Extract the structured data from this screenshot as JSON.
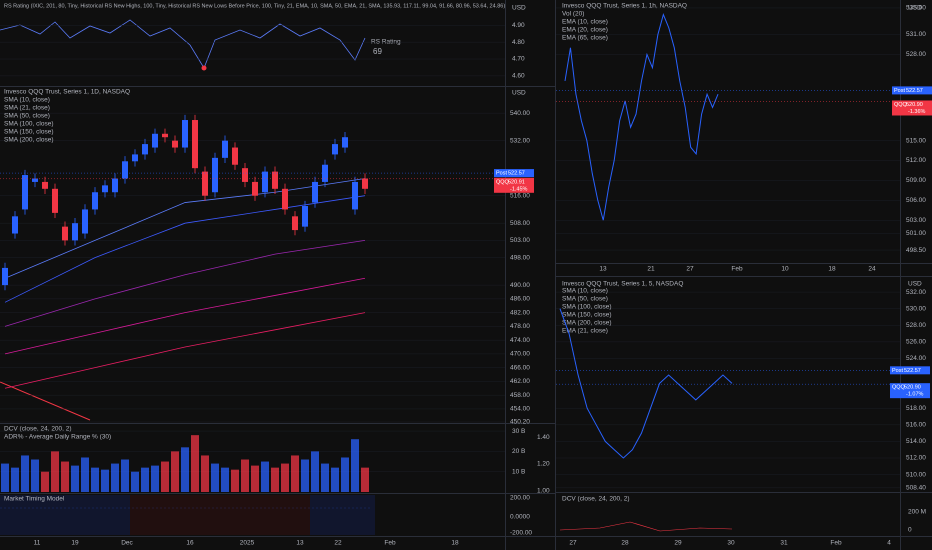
{
  "left": {
    "rs_pane": {
      "title": "RS Rating (IXIC, 201, 80, Tiny, Historical RS New Highs, 100, Tiny, Historical RS New Lows  Before Price, 100, Tiny, 21, EMA, 10, SMA, 50, EMA, 21, SMA, 135.93, 117.11, 99.04, 91.66, 80.96, 53.64, 24.86)",
      "currency": "USD",
      "label": "RS Rating",
      "rating": "69",
      "ylim": [
        4.54,
        5.05
      ],
      "yticks": [
        {
          "value": 4.9,
          "label": "4.90"
        },
        {
          "value": 4.8,
          "label": "4.80"
        },
        {
          "value": 4.7,
          "label": "4.70"
        },
        {
          "value": 4.6,
          "label": "4.60"
        }
      ]
    },
    "price_pane": {
      "title": "Invesco QQQ Trust, Series 1, 1D, NASDAQ",
      "currency": "USD",
      "indicators": [
        "SMA (10, close)",
        "SMA (21, close)",
        "SMA (50, close)",
        "SMA (100, close)",
        "SMA (150, close)",
        "SMA (200, close)"
      ],
      "ylim": [
        450.2,
        547.6
      ],
      "yticks": [
        {
          "value": 540,
          "label": "540.00"
        },
        {
          "value": 532,
          "label": "532.00"
        },
        {
          "value": 516,
          "label": "516.00"
        },
        {
          "value": 508,
          "label": "508.00"
        },
        {
          "value": 503,
          "label": "503.00"
        },
        {
          "value": 498,
          "label": "498.00"
        },
        {
          "value": 490,
          "label": "490.00"
        },
        {
          "value": 486,
          "label": "486.00"
        },
        {
          "value": 482,
          "label": "482.00"
        },
        {
          "value": 478,
          "label": "478.00"
        },
        {
          "value": 474,
          "label": "474.00"
        },
        {
          "value": 470,
          "label": "470.00"
        },
        {
          "value": 466,
          "label": "466.00"
        },
        {
          "value": 462,
          "label": "462.00"
        },
        {
          "value": 458,
          "label": "458.00"
        },
        {
          "value": 454,
          "label": "454.00"
        },
        {
          "value": 450.2,
          "label": "450.20"
        }
      ],
      "tags": [
        {
          "name": "Post",
          "value": 522.57,
          "label": "522.57",
          "color": "#2962ff"
        },
        {
          "name": "QQQ",
          "value": 520.91,
          "label": "520.91",
          "change": "-1.45%",
          "color": "#f23645"
        }
      ],
      "up_color": "#2962ff",
      "down_color": "#f23645",
      "open": [
        490,
        505,
        512,
        520,
        520,
        518,
        507,
        503,
        505,
        512,
        517,
        517,
        521,
        526,
        528,
        530,
        534,
        532,
        530,
        538,
        523,
        517,
        527,
        530,
        524,
        520,
        517,
        523,
        518,
        510,
        507,
        514,
        520,
        528,
        530,
        512,
        521
      ],
      "close": [
        495,
        510,
        522,
        521,
        518,
        511,
        503,
        508,
        512,
        517,
        519,
        521,
        526,
        528,
        531,
        534,
        533,
        530,
        538,
        524,
        516,
        527,
        532,
        525,
        520,
        516,
        523,
        518,
        512,
        506,
        513,
        520,
        525,
        531,
        533,
        520,
        518
      ],
      "high": [
        496.5,
        511.5,
        523.5,
        522.5,
        521.5,
        519.5,
        508.5,
        509.5,
        513.5,
        518.5,
        520.5,
        522.5,
        527.5,
        529.5,
        532.5,
        535.5,
        535.5,
        533.5,
        539.5,
        539.5,
        524.5,
        528.5,
        533.5,
        531.5,
        525.5,
        521.5,
        524.5,
        524.5,
        519.5,
        511.5,
        514.5,
        521.5,
        526.5,
        532.5,
        534.5,
        521.5,
        522.5
      ],
      "low": [
        488.5,
        503.5,
        510.5,
        518.5,
        516.5,
        509.5,
        501.5,
        501.5,
        503.5,
        510.5,
        515.5,
        515.5,
        519.5,
        524.5,
        526.5,
        528.5,
        531.5,
        528.5,
        528.5,
        522.5,
        514.5,
        515.5,
        525.5,
        523.5,
        518.5,
        514.5,
        515.5,
        516.5,
        510.5,
        504.5,
        505.5,
        512.5,
        518.5,
        526.5,
        528.5,
        510.5,
        516.5
      ],
      "ma_lines": [
        {
          "color": "#5b7cfa",
          "values": [
            492,
            503,
            514,
            517,
            521
          ]
        },
        {
          "color": "#3d5afe",
          "values": [
            485,
            498,
            508,
            512,
            516
          ]
        },
        {
          "color": "#9c27b0",
          "values": [
            478,
            486,
            493,
            499,
            503
          ]
        },
        {
          "color": "#d81b9a",
          "values": [
            470,
            476,
            482,
            487,
            492
          ]
        },
        {
          "color": "#e91e63",
          "values": [
            460,
            466,
            472,
            477,
            482
          ]
        }
      ]
    },
    "dcv_pane": {
      "title": "DCV (close, 24, 200, 2)",
      "subtitle": "ADR% - Average Daily Range % (30)",
      "ylim": [
        0,
        33
      ],
      "yticks": [
        {
          "value": 30,
          "label": "30 B"
        },
        {
          "value": 20,
          "label": "20 B"
        },
        {
          "value": 10,
          "label": "10 B"
        }
      ],
      "y2lim": [
        0.99,
        1.49
      ],
      "y2ticks": [
        {
          "value": 1.4,
          "label": "1.40"
        },
        {
          "value": 1.2,
          "label": "1.20"
        },
        {
          "value": 1.0,
          "label": "1.00"
        }
      ],
      "volume": [
        14,
        12,
        18,
        16,
        10,
        20,
        15,
        13,
        17,
        12,
        11,
        14,
        16,
        10,
        12,
        13,
        15,
        20,
        22,
        28,
        18,
        14,
        12,
        11,
        16,
        13,
        15,
        12,
        14,
        18,
        16,
        20,
        14,
        12,
        17,
        26,
        12
      ]
    },
    "timing_pane": {
      "title": "Market Timing Model",
      "yticks": [
        "200.00",
        "0.0000",
        "-200.00"
      ]
    },
    "time_axis": [
      "11",
      "19",
      "Dec",
      "16",
      "2025",
      "13",
      "22",
      "Feb",
      "18"
    ]
  },
  "right_top": {
    "title": "Invesco QQQ Trust, Series 1, 1h, NASDAQ",
    "currency": "USD",
    "indicators": [
      "Vol (20)",
      "EMA (10, close)",
      "EMA (20, close)",
      "EMA (65, close)"
    ],
    "ylim": [
      496.7,
      536.2
    ],
    "yticks": [
      {
        "value": 535,
        "label": "535.00"
      },
      {
        "value": 531,
        "label": "531.00"
      },
      {
        "value": 528,
        "label": "528.00"
      },
      {
        "value": 515,
        "label": "515.00"
      },
      {
        "value": 512,
        "label": "512.00"
      },
      {
        "value": 509,
        "label": "509.00"
      },
      {
        "value": 506,
        "label": "506.00"
      },
      {
        "value": 503,
        "label": "503.00"
      },
      {
        "value": 501,
        "label": "501.00"
      },
      {
        "value": 498.5,
        "label": "498.50"
      }
    ],
    "tags": [
      {
        "name": "Post",
        "value": 522.57,
        "label": "522.57",
        "color": "#2962ff"
      },
      {
        "name": "QQQ",
        "value": 520.9,
        "label": "520.90",
        "change": "-1.36%",
        "color": "#f23645"
      }
    ],
    "close": [
      524,
      529,
      522,
      518,
      515,
      510,
      506,
      503,
      508,
      512,
      518,
      521,
      517,
      519,
      524,
      528,
      526,
      531,
      534,
      532,
      529,
      524,
      520,
      514,
      513,
      519,
      522,
      520,
      522
    ],
    "time_axis": [
      "13",
      "21",
      "27",
      "Feb",
      "10",
      "18",
      "24"
    ]
  },
  "right_bottom": {
    "title": "Invesco QQQ Trust, Series 1, 5, NASDAQ",
    "currency": "USD",
    "indicators": [
      "SMA (10, close)",
      "SMA (50, close)",
      "SMA (100, close)",
      "SMA (150, close)",
      "SMA (200, close)",
      "EMA (21, close)"
    ],
    "ylim": [
      507.9,
      533.7
    ],
    "yticks": [
      {
        "value": 532,
        "label": "532.00"
      },
      {
        "value": 530,
        "label": "530.00"
      },
      {
        "value": 528,
        "label": "528.00"
      },
      {
        "value": 526,
        "label": "526.00"
      },
      {
        "value": 524,
        "label": "524.00"
      },
      {
        "value": 518,
        "label": "518.00"
      },
      {
        "value": 516,
        "label": "516.00"
      },
      {
        "value": 514,
        "label": "514.00"
      },
      {
        "value": 512,
        "label": "512.00"
      },
      {
        "value": 510,
        "label": "510.00"
      },
      {
        "value": 508.4,
        "label": "508.40"
      }
    ],
    "tags": [
      {
        "name": "Post",
        "value": 522.57,
        "label": "522.57",
        "color": "#2962ff"
      },
      {
        "name": "QQQ",
        "value": 520.9,
        "label": "520.90",
        "change": "-1.07%",
        "color": "#2962ff"
      }
    ],
    "close": [
      530,
      527,
      522,
      518,
      516,
      514,
      513,
      512,
      513,
      515,
      518,
      521,
      522,
      521,
      520,
      519,
      520,
      521,
      522,
      521
    ],
    "dcv_title": "DCV (close, 24, 200, 2)",
    "dcv_ticks": [
      "200 M",
      "0"
    ],
    "time_axis": [
      "27",
      "28",
      "29",
      "30",
      "31",
      "Feb",
      "4"
    ]
  }
}
